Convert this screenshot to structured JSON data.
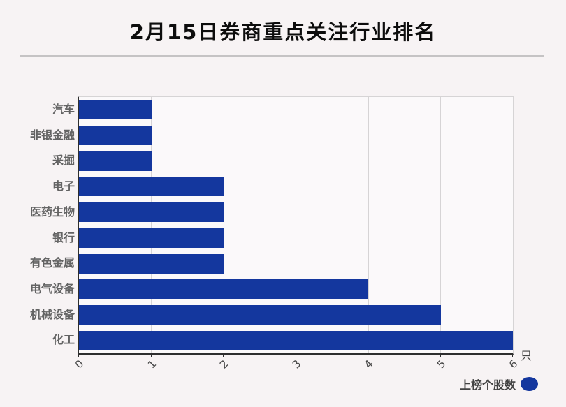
{
  "title": "2月15日券商重点关注行业排名",
  "chart_data": {
    "type": "bar",
    "orientation": "horizontal",
    "title": "2月15日券商重点关注行业排名",
    "categories": [
      "汽车",
      "非银金融",
      "采掘",
      "电子",
      "医药生物",
      "银行",
      "有色金属",
      "电气设备",
      "机械设备",
      "化工"
    ],
    "values": [
      1,
      1,
      1,
      2,
      2,
      2,
      2,
      4,
      5,
      6
    ],
    "series_name": "上榜个股数",
    "xlim": [
      0,
      6
    ],
    "x_ticks": [
      "0",
      "1",
      "2",
      "3",
      "4",
      "5",
      "6"
    ],
    "x_tick_rotation": 45,
    "x_unit": "只",
    "grid": "vertical",
    "legend_position": "bottom-right"
  },
  "legend": {
    "label": "上榜个股数"
  },
  "colors": {
    "bar": "#14379e",
    "page_bg": "#f7f3f4",
    "plot_bg": "#fbf9fa",
    "grid": "#d6d4d5",
    "spine_dark": "#2e2e2e",
    "spine_light": "#d6d4d5",
    "title_text": "#0d0d0d",
    "category_text": "#636363",
    "tick_text": "#474747",
    "legend_text": "#434343",
    "divider": "#c5c3c4"
  }
}
